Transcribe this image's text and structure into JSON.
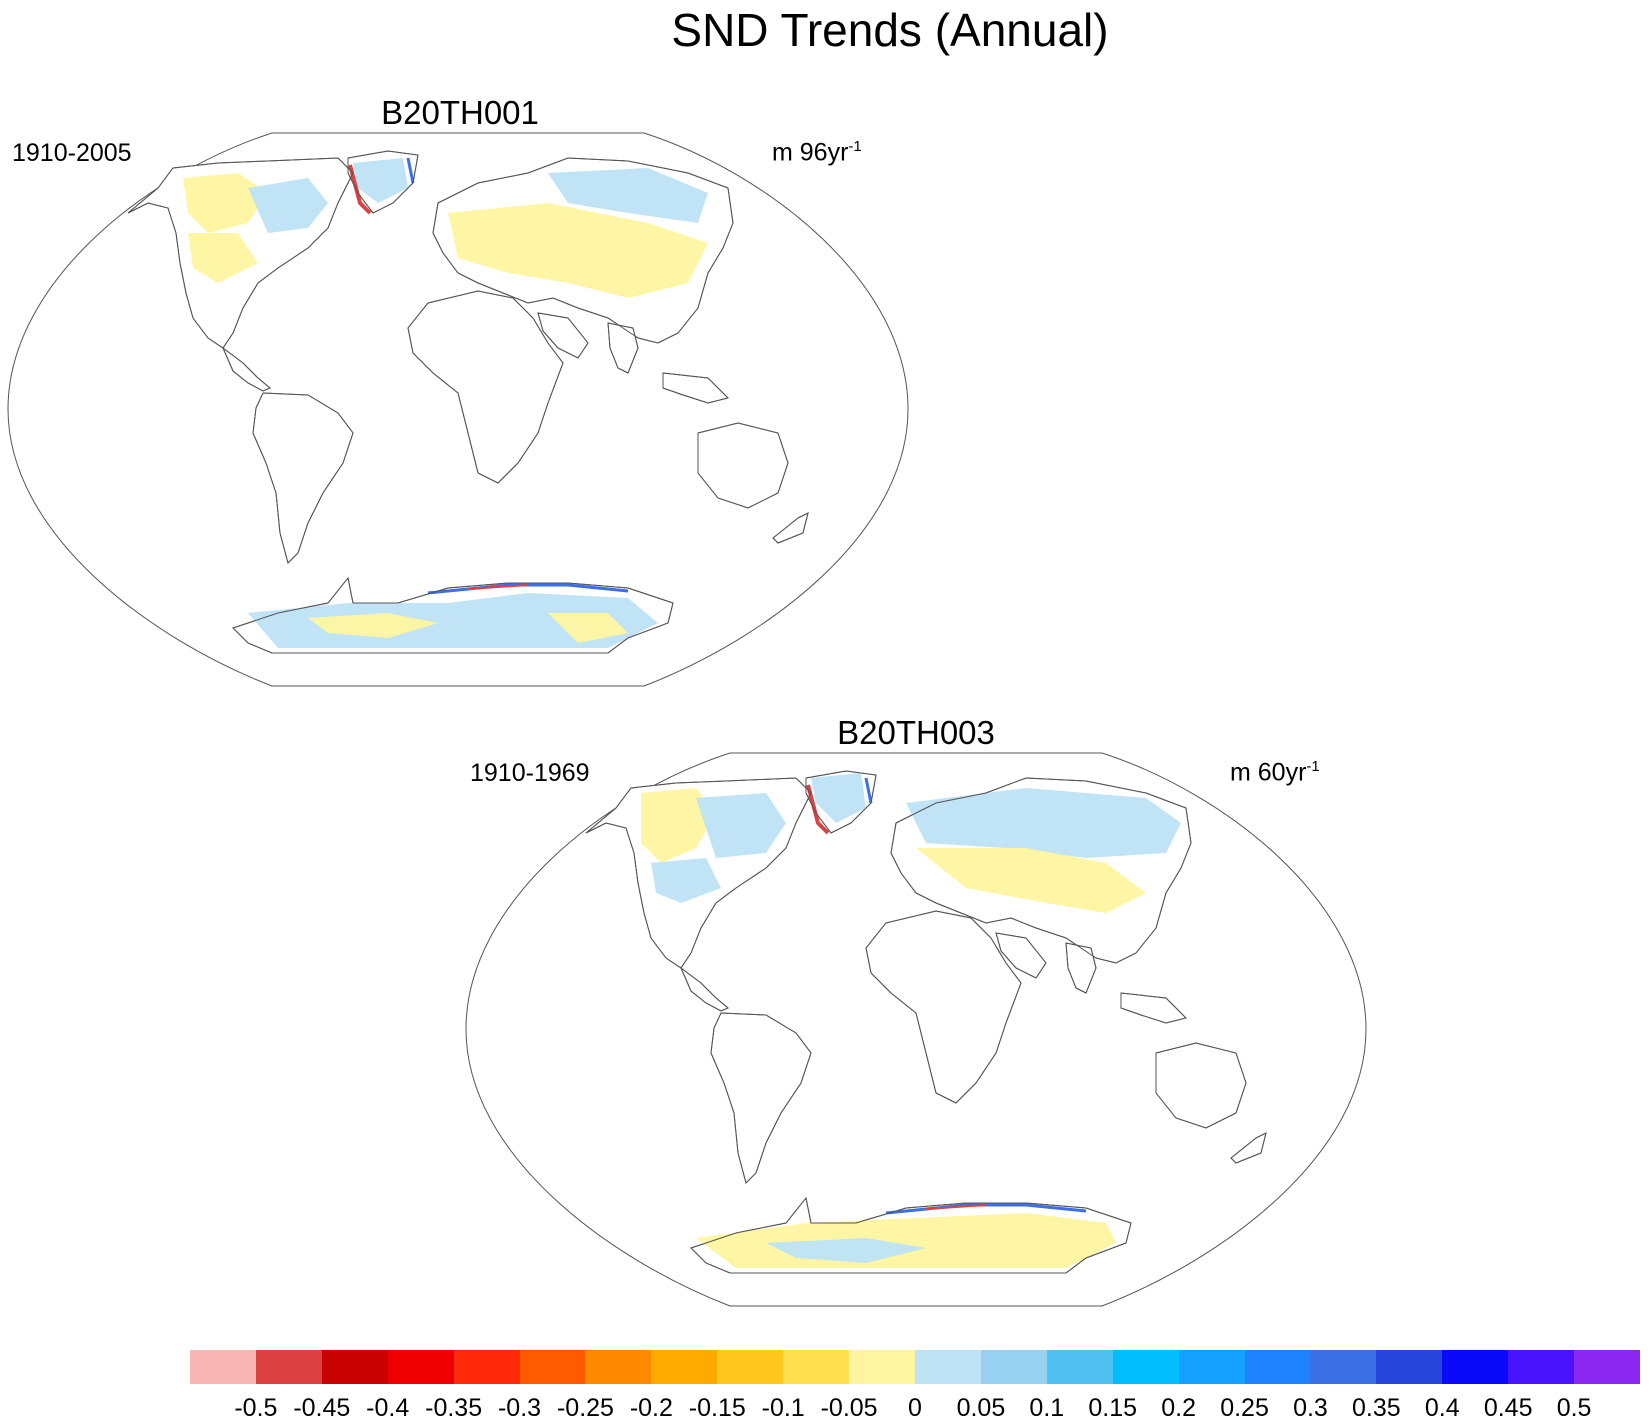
{
  "title": "SND Trends (Annual)",
  "panels": [
    {
      "title": "B20TH001",
      "period": "1910-2005",
      "units_prefix": "m 96yr",
      "units_sup": "-1"
    },
    {
      "title": "B20TH003",
      "period": "1910-1969",
      "units_prefix": "m 60yr",
      "units_sup": "-1"
    }
  ],
  "colorbar": {
    "labels": [
      "-0.5",
      "-0.45",
      "-0.4",
      "-0.35",
      "-0.3",
      "-0.25",
      "-0.2",
      "-0.15",
      "-0.1",
      "-0.05",
      "0",
      "0.05",
      "0.1",
      "0.15",
      "0.2",
      "0.25",
      "0.3",
      "0.35",
      "0.4",
      "0.45",
      "0.5"
    ],
    "colors": [
      "#F9B4B4",
      "#DD4142",
      "#C80000",
      "#EE0000",
      "#FF2A0A",
      "#FF5A00",
      "#FF8A00",
      "#FFAA00",
      "#FFC81E",
      "#FFE150",
      "#FFF5A0",
      "#BDE3F5",
      "#96D2F0",
      "#50C0F0",
      "#00BEFF",
      "#14A0FF",
      "#1E82FF",
      "#3C6EE6",
      "#2846DC",
      "#0A0AFA",
      "#4B14FF",
      "#8C28F0"
    ]
  },
  "map_colors": {
    "ocean_outline": "#555555",
    "land_outline": "#555555",
    "positive_small": "#BDE3F5",
    "negative_small": "#FFF5A0",
    "negative_mid": "#FFE150",
    "strong_neg": "#DD4142",
    "strong_pos": "#3C6EE6"
  }
}
